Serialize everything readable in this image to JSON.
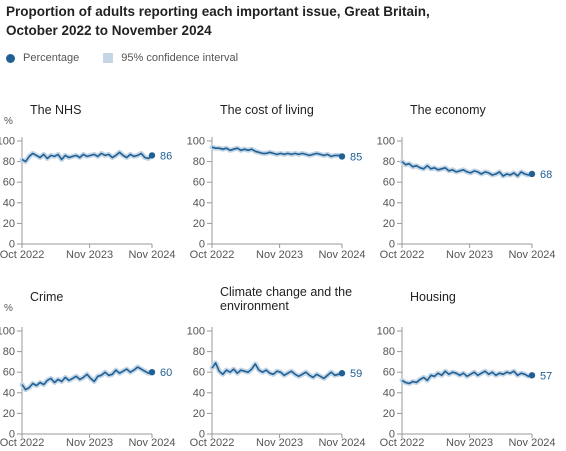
{
  "title": "Proportion of adults reporting each important issue, Great Britain, October 2022 to November 2024",
  "legend": {
    "percentage": "Percentage",
    "ci": "95% confidence interval"
  },
  "colors": {
    "line": "#206095",
    "ci": "#c4d6e6",
    "axis": "#999999",
    "tick_text": "#555555"
  },
  "chart_data": [
    {
      "type": "line",
      "title": "The NHS",
      "ylabel": "%",
      "ylim": [
        0,
        100
      ],
      "yticks": [
        0,
        20,
        40,
        60,
        80,
        100
      ],
      "xticks": [
        "Oct 2022",
        "Nov 2023",
        "Nov 2024"
      ],
      "end_label": "86",
      "series": [
        {
          "values": [
            82,
            80,
            85,
            88,
            86,
            84,
            87,
            83,
            86,
            85,
            87,
            82,
            86,
            84,
            85,
            86,
            84,
            87,
            85,
            86,
            87,
            85,
            88,
            86,
            87,
            84,
            86,
            89,
            86,
            84,
            87,
            85,
            86,
            88,
            84,
            83,
            86
          ]
        }
      ]
    },
    {
      "type": "line",
      "title": "The cost of living",
      "ylabel": "",
      "ylim": [
        0,
        100
      ],
      "yticks": [
        0,
        20,
        40,
        60,
        80,
        100
      ],
      "xticks": [
        "Oct 2022",
        "Nov 2023",
        "Nov 2024"
      ],
      "end_label": "85",
      "series": [
        {
          "values": [
            94,
            93,
            93,
            92,
            93,
            91,
            92,
            93,
            91,
            92,
            91,
            92,
            90,
            89,
            88,
            88,
            89,
            88,
            87,
            88,
            87,
            88,
            87,
            88,
            87,
            88,
            87,
            86,
            87,
            88,
            87,
            86,
            87,
            85,
            86,
            86,
            85
          ]
        }
      ]
    },
    {
      "type": "line",
      "title": "The economy",
      "ylabel": "",
      "ylim": [
        0,
        100
      ],
      "yticks": [
        0,
        20,
        40,
        60,
        80,
        100
      ],
      "xticks": [
        "Oct 2022",
        "Nov 2023",
        "Nov 2024"
      ],
      "end_label": "68",
      "series": [
        {
          "values": [
            80,
            77,
            78,
            75,
            76,
            74,
            73,
            76,
            73,
            74,
            72,
            73,
            74,
            71,
            72,
            70,
            71,
            72,
            70,
            69,
            71,
            70,
            68,
            70,
            69,
            67,
            68,
            70,
            66,
            68,
            67,
            69,
            66,
            70,
            68,
            67,
            68
          ]
        }
      ]
    },
    {
      "type": "line",
      "title": "Crime",
      "ylabel": "%",
      "ylim": [
        0,
        100
      ],
      "yticks": [
        0,
        20,
        40,
        60,
        80,
        100
      ],
      "xticks": [
        "Oct 2022",
        "Nov 2023",
        "Nov 2024"
      ],
      "end_label": "60",
      "series": [
        {
          "values": [
            48,
            43,
            45,
            49,
            47,
            50,
            48,
            52,
            54,
            50,
            53,
            51,
            55,
            52,
            54,
            56,
            53,
            55,
            58,
            54,
            51,
            56,
            57,
            60,
            57,
            58,
            62,
            59,
            61,
            63,
            60,
            62,
            65,
            63,
            61,
            59,
            60
          ]
        }
      ]
    },
    {
      "type": "line",
      "title": "Climate change and the environment",
      "ylabel": "",
      "ylim": [
        0,
        100
      ],
      "yticks": [
        0,
        20,
        40,
        60,
        80,
        100
      ],
      "xticks": [
        "Oct 2022",
        "Nov 2023",
        "Nov 2024"
      ],
      "end_label": "59",
      "series": [
        {
          "values": [
            64,
            69,
            61,
            58,
            62,
            60,
            63,
            59,
            62,
            61,
            60,
            63,
            68,
            62,
            60,
            62,
            59,
            58,
            61,
            60,
            57,
            59,
            61,
            58,
            56,
            58,
            60,
            57,
            55,
            58,
            56,
            54,
            57,
            60,
            57,
            58,
            59
          ]
        }
      ]
    },
    {
      "type": "line",
      "title": "Housing",
      "ylabel": "",
      "ylim": [
        0,
        100
      ],
      "yticks": [
        0,
        20,
        40,
        60,
        80,
        100
      ],
      "xticks": [
        "Oct 2022",
        "Nov 2023",
        "Nov 2024"
      ],
      "end_label": "57",
      "series": [
        {
          "values": [
            52,
            50,
            49,
            51,
            50,
            53,
            55,
            52,
            57,
            56,
            59,
            57,
            61,
            58,
            60,
            59,
            57,
            59,
            56,
            58,
            60,
            57,
            59,
            61,
            58,
            60,
            57,
            59,
            58,
            60,
            59,
            61,
            57,
            59,
            58,
            56,
            57
          ]
        }
      ]
    }
  ]
}
